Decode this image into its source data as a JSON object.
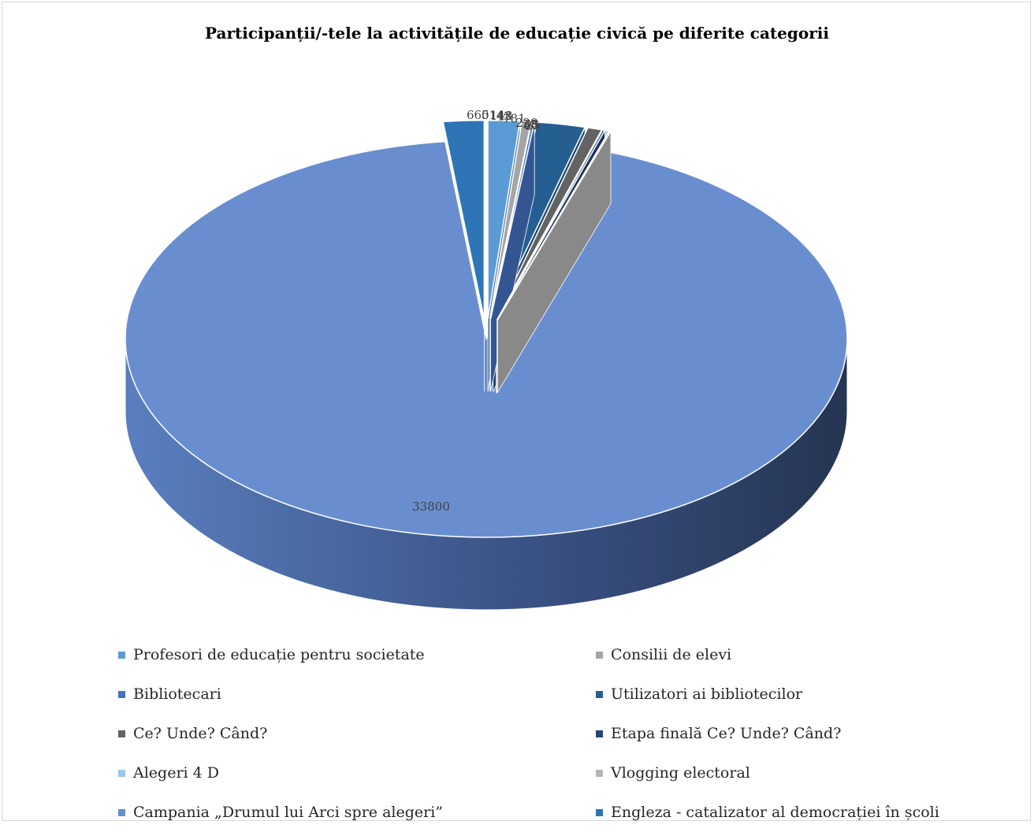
{
  "chart_data": {
    "type": "pie",
    "variant": "3d-exploded",
    "title": "Participanții/-tele la activitățile de educație civică pe diferite categorii",
    "legend_position": "bottom",
    "series": [
      {
        "name": "Profesori de educație pentru societate",
        "value": 514,
        "color": "#5b9bd5"
      },
      {
        "name": "Consilii de elevi",
        "value": 148,
        "color": "#a5a5a5"
      },
      {
        "name": "Bibliotecari",
        "value": 43,
        "color": "#4472c4"
      },
      {
        "name": "Utilizatori ai bibliotecilor",
        "value": 781,
        "color": "#255e91"
      },
      {
        "name": "Ce? Unde? Când?",
        "value": 229,
        "color": "#636363"
      },
      {
        "name": "Etapa finală Ce? Unde? Când?",
        "value": 38,
        "color": "#264478"
      },
      {
        "name": "Alegeri 4 D",
        "value": 65,
        "color": "#9dc3e6"
      },
      {
        "name": "Vlogging electoral",
        "value": 25,
        "color": "#b7b7b7"
      },
      {
        "name": "Campania „Drumul lui Arci spre alegeri”",
        "value": 33800,
        "color": "#698ed0"
      },
      {
        "name": "Engleza - catalizator al democrației în școli",
        "value": 660,
        "color": "#2e75b6"
      }
    ]
  }
}
